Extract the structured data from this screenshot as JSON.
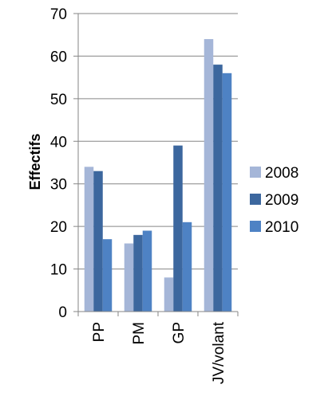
{
  "chart_data": {
    "type": "bar",
    "categories": [
      "PP",
      "PM",
      "GP",
      "JV/volant"
    ],
    "series": [
      {
        "name": "2008",
        "values": [
          34,
          16,
          8,
          64
        ],
        "color": "#A5B6D8"
      },
      {
        "name": "2009",
        "values": [
          33,
          18,
          39,
          58
        ],
        "color": "#3C679E"
      },
      {
        "name": "2010",
        "values": [
          17,
          19,
          21,
          56
        ],
        "color": "#4E82C4"
      }
    ],
    "ylabel": "Effectifs",
    "xlabel": "",
    "ylim": [
      0,
      70
    ],
    "yticks": [
      0,
      10,
      20,
      30,
      40,
      50,
      60,
      70
    ],
    "grid": true,
    "legend_position": "right",
    "gridline_color": "#868686"
  }
}
